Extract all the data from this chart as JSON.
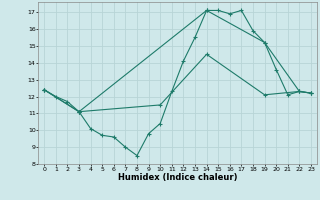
{
  "xlabel": "Humidex (Indice chaleur)",
  "bg_color": "#cfe8ea",
  "grid_color": "#b8d4d6",
  "line_color": "#1e7b6a",
  "xlim": [
    -0.5,
    23.5
  ],
  "ylim": [
    8,
    17.6
  ],
  "yticks": [
    8,
    9,
    10,
    11,
    12,
    13,
    14,
    15,
    16,
    17
  ],
  "xticks": [
    0,
    1,
    2,
    3,
    4,
    5,
    6,
    7,
    8,
    9,
    10,
    11,
    12,
    13,
    14,
    15,
    16,
    17,
    18,
    19,
    20,
    21,
    22,
    23
  ],
  "line1_x": [
    0,
    1,
    2,
    3,
    4,
    5,
    6,
    7,
    8,
    9,
    10,
    11,
    12,
    13,
    14,
    15,
    16,
    17,
    18,
    19,
    20,
    21,
    22,
    23
  ],
  "line1_y": [
    12.4,
    12.0,
    11.7,
    11.1,
    10.1,
    9.7,
    9.6,
    9.0,
    8.5,
    9.8,
    10.4,
    12.3,
    14.1,
    15.5,
    17.1,
    17.1,
    16.9,
    17.1,
    15.9,
    15.2,
    13.6,
    12.1,
    12.3,
    12.2
  ],
  "line2_x": [
    0,
    3,
    14,
    19,
    22,
    23
  ],
  "line2_y": [
    12.4,
    11.1,
    17.1,
    15.2,
    12.3,
    12.2
  ],
  "line3_x": [
    0,
    3,
    10,
    14,
    19,
    22,
    23
  ],
  "line3_y": [
    12.4,
    11.1,
    11.5,
    14.5,
    12.1,
    12.3,
    12.2
  ]
}
